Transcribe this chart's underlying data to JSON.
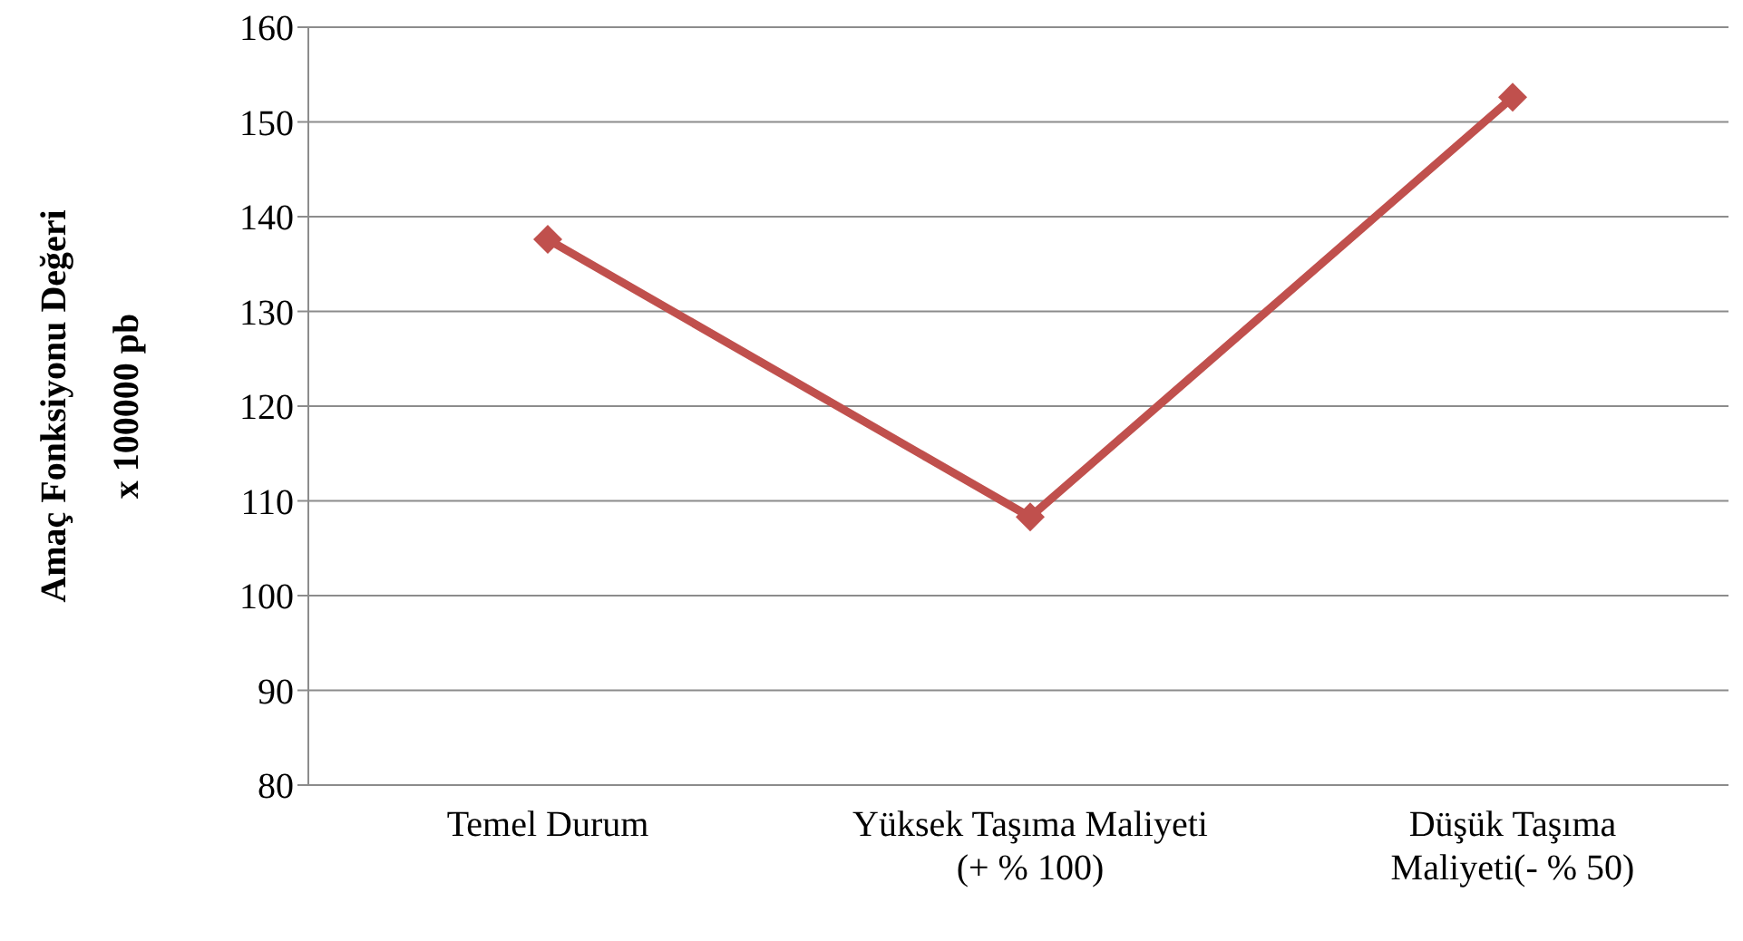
{
  "chart_data": {
    "type": "line",
    "ylabel": "Amaç Fonksiyonu Değeri\nx 100000 pb",
    "categories": [
      "Temel Durum",
      "Yüksek Taşıma Maliyeti\n(+ % 100)",
      "Düşük Taşıma\nMaliyeti(- % 50)"
    ],
    "series": [
      {
        "color": "#c0504d",
        "values": [
          137.6,
          108.3,
          152.6
        ]
      }
    ],
    "ylim": [
      80,
      160
    ],
    "yticks": [
      80,
      90,
      100,
      110,
      120,
      130,
      140,
      150,
      160
    ],
    "grid": "y",
    "marker": "diamond",
    "line_style": "solid",
    "legend": false
  }
}
